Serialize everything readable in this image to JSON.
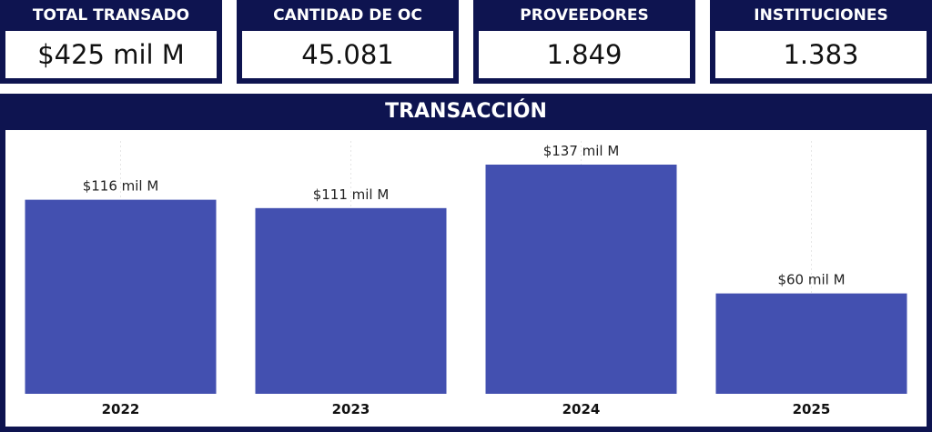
{
  "kpis": [
    {
      "title": "TOTAL TRANSADO",
      "value": "$425 mil M"
    },
    {
      "title": "CANTIDAD DE OC",
      "value": "45.081"
    },
    {
      "title": "PROVEEDORES",
      "value": "1.849"
    },
    {
      "title": "INSTITUCIONES",
      "value": "1.383"
    }
  ],
  "colors": {
    "navy": "#0e1450",
    "bar": "#4350b0"
  },
  "chart_data": {
    "type": "bar",
    "title": "TRANSACCIÓN",
    "categories": [
      "2022",
      "2023",
      "2024",
      "2025"
    ],
    "values": [
      116,
      111,
      137,
      60
    ],
    "data_labels": [
      "$116 mil M",
      "$111 mil M",
      "$137 mil M",
      "$60 mil M"
    ],
    "ylim": [
      0,
      137
    ],
    "grid": false,
    "legend": "none"
  }
}
